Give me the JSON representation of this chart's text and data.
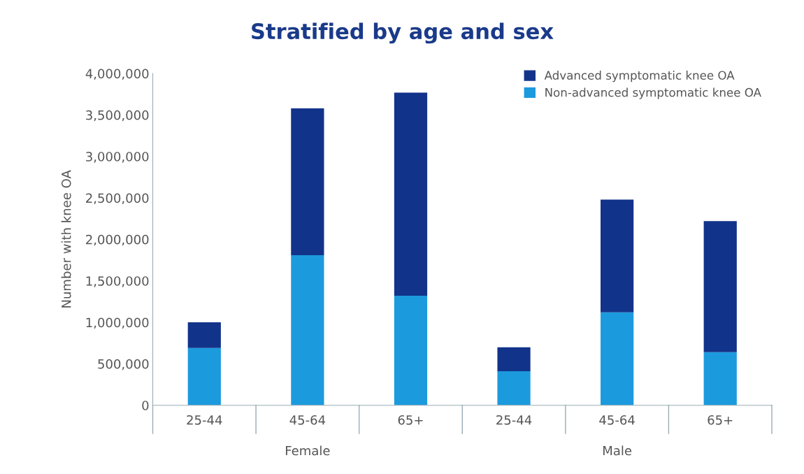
{
  "chart_data": {
    "type": "bar",
    "title": "Stratified by age and sex",
    "ylabel": "Number with knee OA",
    "stacked": true,
    "categories": [
      "25-44",
      "45-64",
      "65+",
      "25-44",
      "45-64",
      "65+"
    ],
    "series": [
      {
        "name": "Non-advanced symptomatic knee OA",
        "color": "#1c9ade",
        "values": [
          690000,
          1810000,
          1320000,
          410000,
          1120000,
          640000
        ]
      },
      {
        "name": "Advanced symptomatic knee OA",
        "color": "#12338a",
        "values": [
          310000,
          1770000,
          2450000,
          290000,
          1360000,
          1580000
        ]
      }
    ],
    "annotations": [
      "Female",
      "Male"
    ],
    "ylim": [
      0,
      4000000
    ],
    "yticks": [
      {
        "value": 0,
        "label": "0"
      },
      {
        "value": 500000,
        "label": "500,000"
      },
      {
        "value": 1000000,
        "label": "1,000,000"
      },
      {
        "value": 1500000,
        "label": "1,500,000"
      },
      {
        "value": 2000000,
        "label": "2,000,000"
      },
      {
        "value": 2500000,
        "label": "2,500,000"
      },
      {
        "value": 3000000,
        "label": "3,000,000"
      },
      {
        "value": 3500000,
        "label": "3,500,000"
      },
      {
        "value": 4000000,
        "label": "4,000,000"
      }
    ],
    "grid": false,
    "legend": "top right"
  }
}
